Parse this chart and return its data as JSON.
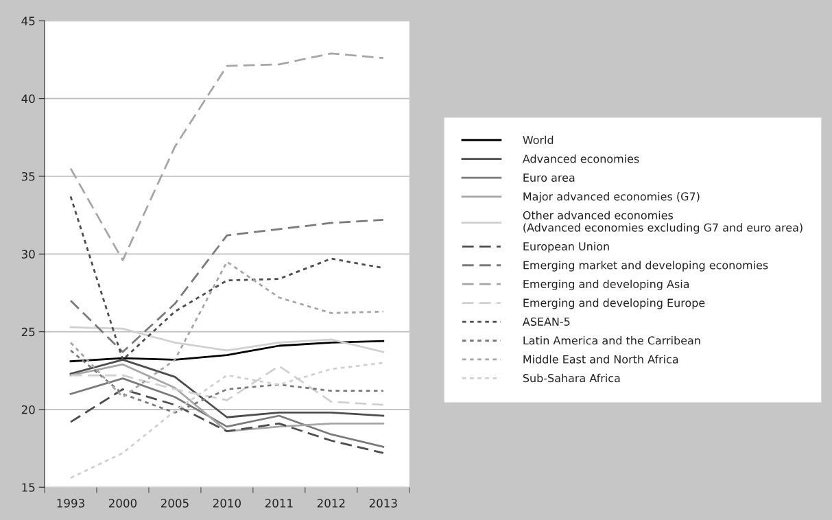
{
  "chart_data": {
    "type": "line",
    "categories": [
      "1993",
      "2000",
      "2005",
      "2010",
      "2011",
      "2012",
      "2013"
    ],
    "ylim": [
      15,
      45
    ],
    "yticks": [
      15,
      20,
      25,
      30,
      35,
      40,
      45
    ],
    "grid": "y",
    "legend": "right",
    "marker": "none",
    "series": [
      {
        "name": "World",
        "color": "#000000",
        "line_style": "solid",
        "values": [
          23.1,
          23.3,
          23.2,
          23.5,
          24.1,
          24.3,
          24.4
        ]
      },
      {
        "name": "Advanced economies",
        "color": "#4d4d4d",
        "line_style": "solid",
        "values": [
          22.3,
          23.2,
          22.1,
          19.5,
          19.8,
          19.8,
          19.6
        ]
      },
      {
        "name": "Euro area",
        "color": "#7a7a7a",
        "line_style": "solid",
        "values": [
          21.0,
          22.0,
          20.8,
          18.9,
          19.6,
          18.4,
          17.6
        ]
      },
      {
        "name": "Major advanced economies (G7)",
        "color": "#a6a6a6",
        "line_style": "solid",
        "values": [
          22.2,
          22.9,
          21.4,
          18.6,
          18.9,
          19.1,
          19.1
        ]
      },
      {
        "name": "Other advanced economies\n(Advanced economies excluding G7 and euro area)",
        "color": "#d0d0d0",
        "line_style": "solid",
        "values": [
          25.3,
          25.2,
          24.3,
          23.8,
          24.3,
          24.5,
          23.7
        ]
      },
      {
        "name": "European Union",
        "color": "#4d4d4d",
        "line_style": "dashed",
        "values": [
          19.2,
          21.3,
          20.3,
          18.6,
          19.1,
          18.0,
          17.2
        ]
      },
      {
        "name": "Emerging market and developing economies",
        "color": "#7a7a7a",
        "line_style": "dashed",
        "values": [
          27.0,
          23.7,
          26.8,
          31.2,
          31.6,
          32.0,
          32.2
        ]
      },
      {
        "name": "Emerging and developing Asia",
        "color": "#a6a6a6",
        "line_style": "dashed",
        "values": [
          35.5,
          29.6,
          36.9,
          42.1,
          42.2,
          42.9,
          42.6
        ]
      },
      {
        "name": "Emerging and developing Europe",
        "color": "#d0d0d0",
        "line_style": "dashed",
        "values": [
          22.2,
          22.2,
          21.3,
          20.6,
          22.8,
          20.5,
          20.3
        ]
      },
      {
        "name": "ASEAN-5",
        "color": "#4d4d4d",
        "line_style": "dotted",
        "values": [
          33.7,
          23.2,
          26.3,
          28.3,
          28.4,
          29.7,
          29.1
        ]
      },
      {
        "name": "Latin America and the Carribean",
        "color": "#7a7a7a",
        "line_style": "dotted",
        "values": [
          23.8,
          21.0,
          19.8,
          21.3,
          21.6,
          21.2,
          21.2
        ]
      },
      {
        "name": "Middle East and North Africa",
        "color": "#a6a6a6",
        "line_style": "dotted",
        "values": [
          24.3,
          20.8,
          23.2,
          29.5,
          27.2,
          26.2,
          26.3
        ]
      },
      {
        "name": "Sub-Sahara Africa",
        "color": "#d0d0d0",
        "line_style": "dotted",
        "values": [
          15.6,
          17.2,
          19.9,
          22.2,
          21.6,
          22.6,
          23.0
        ]
      }
    ]
  }
}
